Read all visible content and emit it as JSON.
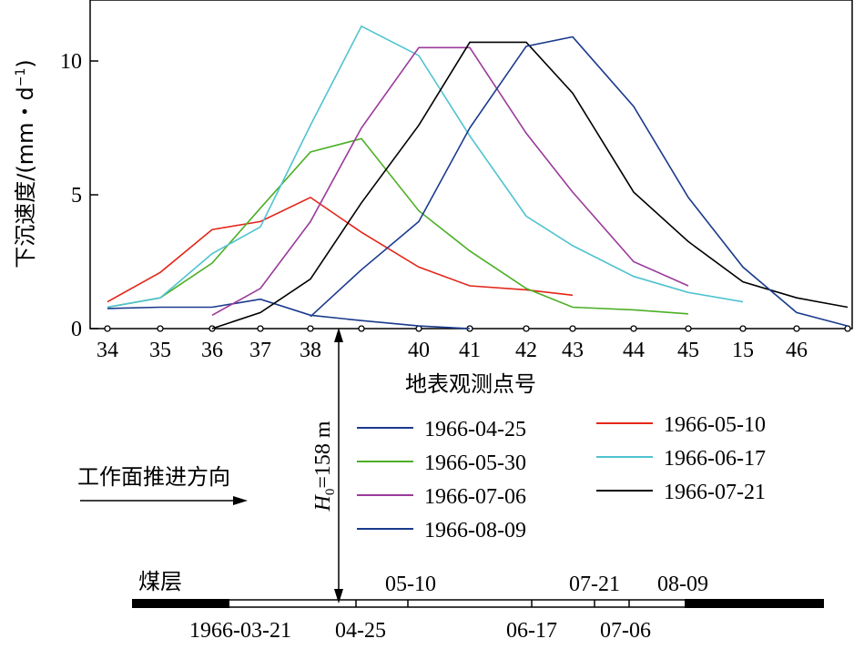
{
  "chart_data": {
    "type": "line",
    "ylabel": "下沉速度/(mm・d",
    "ylabel_sup": "−1",
    "ylabel_close": ")",
    "xlabel": "地表观测点号",
    "ylim": [
      0,
      12
    ],
    "yticks": [
      0,
      5,
      10
    ],
    "grid": false,
    "legend_position": "below plot, two columns",
    "categories": [
      "34",
      "35",
      "36",
      "37",
      "38",
      "",
      "40",
      "41",
      "42",
      "43",
      "44",
      "45",
      "15",
      "46",
      ""
    ],
    "x_tick_labels": [
      "34",
      "35",
      "36",
      "37",
      "38",
      "40",
      "41",
      "42",
      "43",
      "44",
      "45",
      "15",
      "46"
    ],
    "series": [
      {
        "name": "1966-04-25",
        "color": "#1a3a8c",
        "values": [
          0.75,
          0.8,
          0.8,
          1.1,
          0.5,
          0.3,
          0.1,
          0.0,
          null,
          null,
          null,
          null,
          null,
          null,
          null
        ]
      },
      {
        "name": "1966-05-10",
        "color": "#e32619",
        "values": [
          1.0,
          2.1,
          3.7,
          4.0,
          4.9,
          3.6,
          2.3,
          1.6,
          1.45,
          1.25,
          null,
          null,
          null,
          null,
          null
        ]
      },
      {
        "name": "1966-05-30",
        "color": "#4caf26",
        "values": [
          0.8,
          1.15,
          2.45,
          4.5,
          6.6,
          7.1,
          4.4,
          2.9,
          1.5,
          0.8,
          0.7,
          0.55,
          null,
          null,
          null
        ]
      },
      {
        "name": "1966-06-17",
        "color": "#4fc3d0",
        "values": [
          0.8,
          1.15,
          2.8,
          3.8,
          7.6,
          11.3,
          10.2,
          7.2,
          4.2,
          3.1,
          1.95,
          1.35,
          1.0,
          null,
          null
        ]
      },
      {
        "name": "1966-07-06",
        "color": "#9b3a9b",
        "values": [
          null,
          null,
          0.5,
          1.5,
          4.0,
          7.5,
          10.5,
          10.5,
          7.3,
          5.1,
          2.5,
          1.6,
          null,
          null,
          null
        ]
      },
      {
        "name": "1966-07-21",
        "color": "#000000",
        "values": [
          null,
          null,
          0.0,
          0.6,
          1.85,
          4.7,
          7.6,
          10.7,
          10.7,
          8.8,
          5.1,
          3.25,
          1.75,
          1.15,
          0.8
        ]
      },
      {
        "name": "1966-08-09",
        "color": "#1a3a8c",
        "values": [
          null,
          null,
          null,
          null,
          0.45,
          2.2,
          4.0,
          7.5,
          10.55,
          10.9,
          8.3,
          4.9,
          2.3,
          0.6,
          0.1
        ]
      }
    ],
    "annotations": {
      "depth_label": "H",
      "depth_sub": "0",
      "depth_value": "=158 m",
      "direction_label": "工作面推进方向",
      "seam_label": "煤层",
      "face_dates_top": [
        "05-10",
        "07-21",
        "08-09"
      ],
      "face_dates_bottom": [
        "1966-03-21",
        "04-25",
        "06-17",
        "07-06"
      ]
    }
  }
}
